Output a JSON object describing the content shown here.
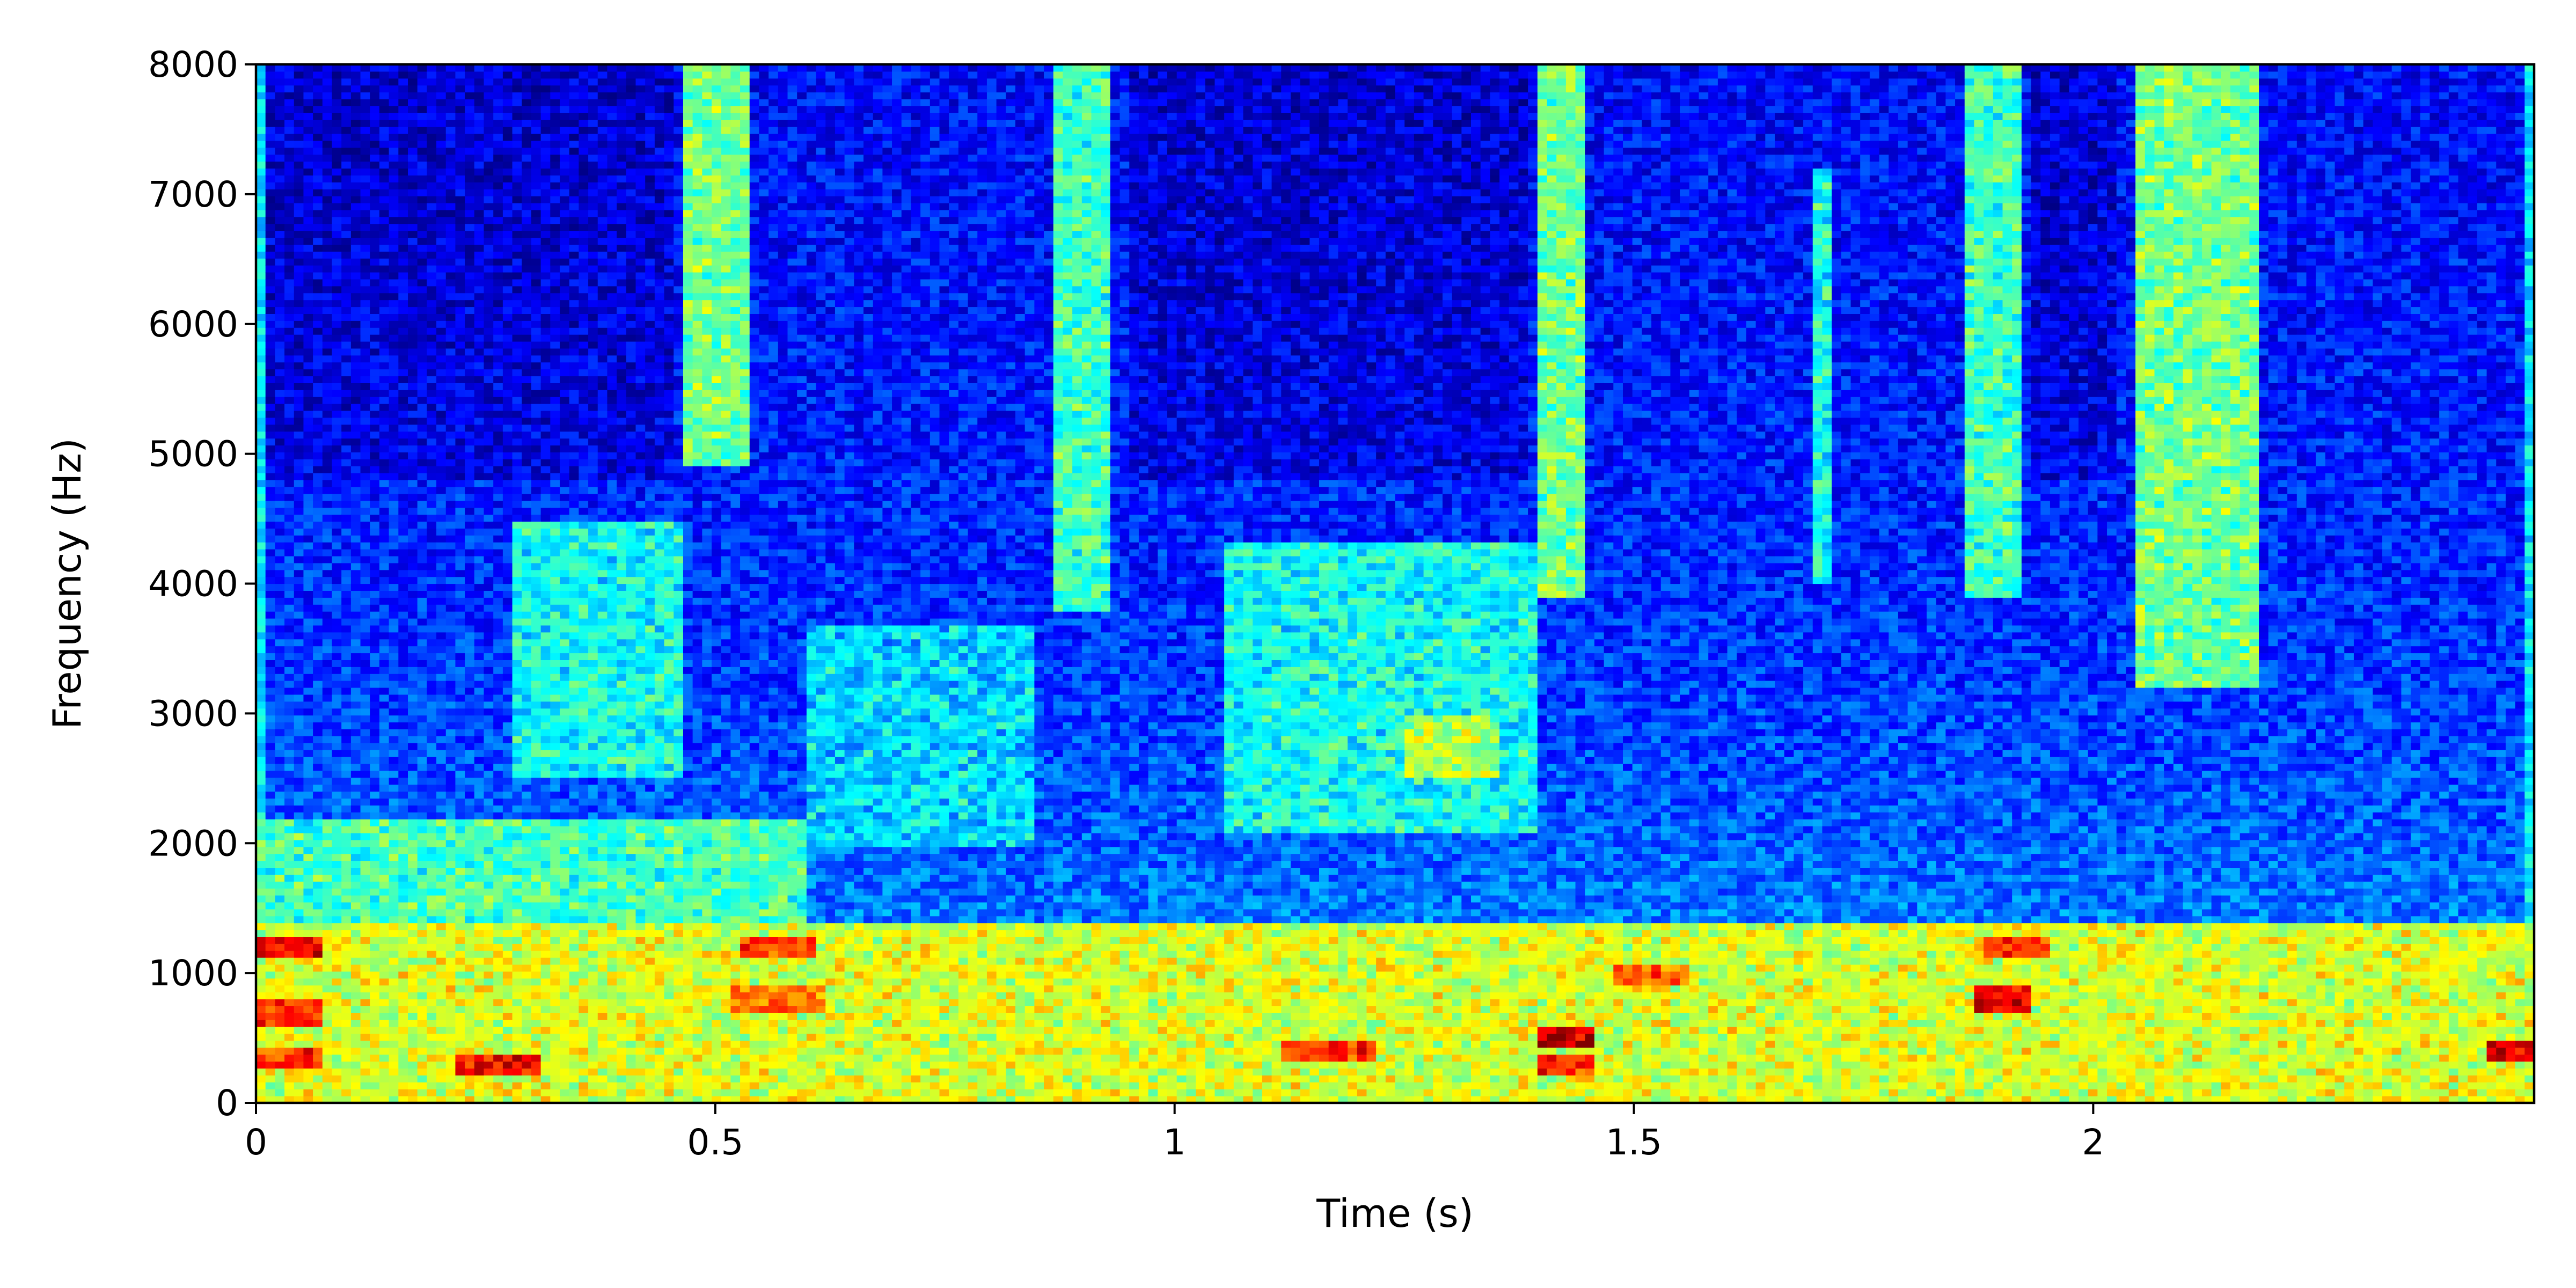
{
  "chart_data": {
    "type": "heatmap",
    "title": "",
    "xlabel": "Time (s)",
    "ylabel": "Frequency (Hz)",
    "xlim": [
      0,
      2.48
    ],
    "ylim": [
      0,
      8000
    ],
    "x_ticks": [
      {
        "value": 0,
        "label": "0"
      },
      {
        "value": 0.5,
        "label": "0.5"
      },
      {
        "value": 1,
        "label": "1"
      },
      {
        "value": 1.5,
        "label": "1.5"
      },
      {
        "value": 2,
        "label": "2"
      }
    ],
    "y_ticks": [
      {
        "value": 0,
        "label": "0"
      },
      {
        "value": 1000,
        "label": "1000"
      },
      {
        "value": 2000,
        "label": "2000"
      },
      {
        "value": 3000,
        "label": "3000"
      },
      {
        "value": 4000,
        "label": "4000"
      },
      {
        "value": 5000,
        "label": "5000"
      },
      {
        "value": 6000,
        "label": "6000"
      },
      {
        "value": 7000,
        "label": "7000"
      },
      {
        "value": 8000,
        "label": "8000"
      }
    ],
    "colormap": "jet",
    "grid": false,
    "legend": "none",
    "energy_regions": [
      {
        "t_start": 0.47,
        "t_end": 0.54,
        "f_low": 4900,
        "f_high": 8000,
        "level": 0.55
      },
      {
        "t_start": 0.87,
        "t_end": 0.93,
        "f_low": 3800,
        "f_high": 8000,
        "level": 0.5
      },
      {
        "t_start": 1.4,
        "t_end": 1.45,
        "f_low": 3900,
        "f_high": 8000,
        "level": 0.55
      },
      {
        "t_start": 1.69,
        "t_end": 1.72,
        "f_low": 4000,
        "f_high": 7200,
        "level": 0.45
      },
      {
        "t_start": 1.86,
        "t_end": 1.92,
        "f_low": 3900,
        "f_high": 8000,
        "level": 0.5
      },
      {
        "t_start": 2.05,
        "t_end": 2.18,
        "f_low": 3200,
        "f_high": 8000,
        "level": 0.55
      },
      {
        "t_start": 0.28,
        "t_end": 0.46,
        "f_low": 2500,
        "f_high": 4500,
        "level": 0.45
      },
      {
        "t_start": 0.6,
        "t_end": 0.85,
        "f_low": 2000,
        "f_high": 3700,
        "level": 0.4
      },
      {
        "t_start": 1.05,
        "t_end": 1.4,
        "f_low": 2100,
        "f_high": 4300,
        "level": 0.45
      },
      {
        "t_start": 1.25,
        "t_end": 1.35,
        "f_low": 2500,
        "f_high": 3000,
        "level": 0.6
      },
      {
        "t_start": 0.0,
        "t_end": 2.48,
        "f_low": 0,
        "f_high": 1400,
        "level": 0.65
      },
      {
        "t_start": 0.0,
        "t_end": 0.6,
        "f_low": 1400,
        "f_high": 2200,
        "level": 0.5
      }
    ],
    "hot_bands": [
      {
        "t_start": 0.0,
        "t_end": 0.07,
        "f": 1200,
        "level": 0.9
      },
      {
        "t_start": 0.0,
        "t_end": 0.07,
        "f": 700,
        "level": 0.85
      },
      {
        "t_start": 0.0,
        "t_end": 0.07,
        "f": 350,
        "level": 0.85
      },
      {
        "t_start": 0.22,
        "t_end": 0.31,
        "f": 300,
        "level": 0.9
      },
      {
        "t_start": 0.53,
        "t_end": 0.61,
        "f": 1200,
        "level": 0.85
      },
      {
        "t_start": 0.52,
        "t_end": 0.62,
        "f": 800,
        "level": 0.8
      },
      {
        "t_start": 1.12,
        "t_end": 1.22,
        "f": 400,
        "level": 0.85
      },
      {
        "t_start": 1.4,
        "t_end": 1.46,
        "f": 500,
        "level": 0.95
      },
      {
        "t_start": 1.4,
        "t_end": 1.46,
        "f": 300,
        "level": 0.85
      },
      {
        "t_start": 1.48,
        "t_end": 1.56,
        "f": 1000,
        "level": 0.8
      },
      {
        "t_start": 1.87,
        "t_end": 1.93,
        "f": 800,
        "level": 0.9
      },
      {
        "t_start": 1.88,
        "t_end": 1.95,
        "f": 1200,
        "level": 0.85
      },
      {
        "t_start": 2.43,
        "t_end": 2.48,
        "f": 400,
        "level": 0.9
      }
    ]
  }
}
